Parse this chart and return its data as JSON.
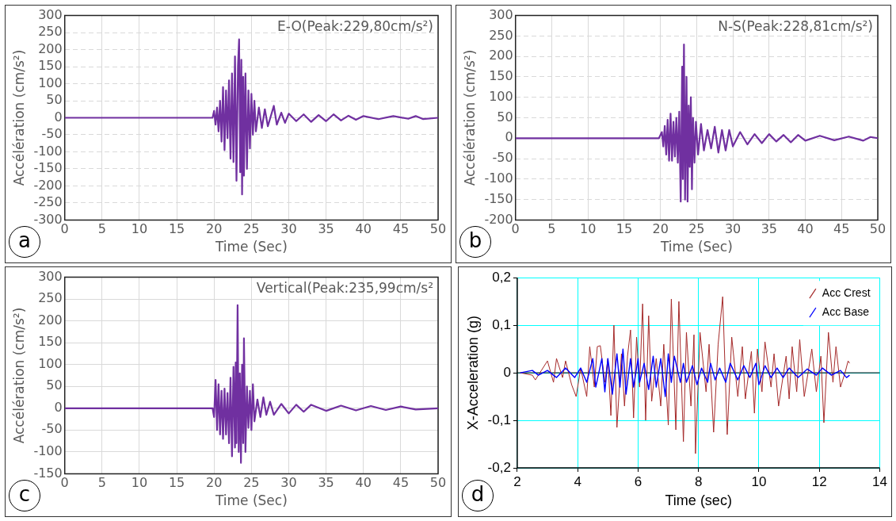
{
  "chart_data": [
    {
      "type": "line",
      "xlabel": "Time (Sec)",
      "ylabel": "Accélération (cm/s²)",
      "annotations": [
        "E-O(Peak:229,80cm/s²)",
        "a"
      ],
      "xlim": [
        0,
        50
      ],
      "ylim": [
        -300,
        300
      ],
      "xticks": [
        0,
        5,
        10,
        15,
        20,
        25,
        30,
        35,
        40,
        45,
        50
      ],
      "yticks": [
        -300,
        -250,
        -200,
        -150,
        -100,
        -50,
        0,
        50,
        100,
        150,
        200,
        250,
        300
      ],
      "grid": true,
      "marker": "none",
      "line_style": "solid",
      "series": [
        {
          "color": "#7030a0",
          "x": [
            0,
            19.8,
            20.0,
            20.2,
            20.4,
            20.6,
            20.8,
            21.0,
            21.2,
            21.4,
            21.6,
            21.8,
            22.0,
            22.2,
            22.4,
            22.6,
            22.8,
            23.0,
            23.2,
            23.35,
            23.5,
            23.65,
            23.75,
            23.9,
            24.0,
            24.2,
            24.4,
            24.6,
            24.8,
            25.0,
            25.2,
            25.4,
            25.6,
            26.0,
            26.4,
            26.8,
            27.2,
            28.0,
            28.4,
            29,
            29.5,
            30,
            31,
            32,
            33,
            34,
            35,
            36,
            37,
            38,
            39,
            40,
            42,
            44,
            46,
            47,
            48,
            50
          ],
          "values": [
            0,
            0,
            20,
            -20,
            30,
            -40,
            50,
            -70,
            90,
            -95,
            80,
            -60,
            110,
            -120,
            130,
            -130,
            180,
            -185,
            150,
            230,
            -160,
            170,
            -225,
            120,
            -170,
            130,
            -150,
            80,
            -90,
            70,
            -50,
            50,
            -40,
            30,
            -30,
            25,
            -25,
            35,
            -20,
            15,
            -15,
            12,
            -10,
            10,
            -12,
            8,
            -10,
            10,
            -8,
            6,
            -6,
            5,
            -4,
            5,
            -3,
            5,
            -4,
            0
          ]
        }
      ]
    },
    {
      "type": "line",
      "xlabel": "Time (Sec)",
      "ylabel": "Accélération (cm/s²)",
      "annotations": [
        "N-S(Peak:228,81cm/s²)",
        "b"
      ],
      "xlim": [
        0,
        50
      ],
      "ylim": [
        -200,
        300
      ],
      "xticks": [
        0,
        5,
        10,
        15,
        20,
        25,
        30,
        35,
        40,
        45,
        50
      ],
      "yticks": [
        -200,
        -150,
        -100,
        -50,
        0,
        50,
        100,
        150,
        200,
        250,
        300
      ],
      "grid": true,
      "marker": "none",
      "line_style": "solid",
      "series": [
        {
          "color": "#7030a0",
          "x": [
            0,
            19.8,
            20.2,
            20.4,
            20.6,
            20.8,
            21.0,
            21.2,
            21.4,
            21.6,
            21.8,
            22.0,
            22.2,
            22.4,
            22.6,
            22.8,
            23.0,
            23.1,
            23.25,
            23.4,
            23.6,
            23.75,
            23.9,
            24.05,
            24.2,
            24.35,
            24.5,
            24.7,
            24.9,
            25.2,
            25.6,
            26,
            26.5,
            27,
            27.5,
            28,
            28.5,
            29,
            29.5,
            30,
            31,
            32,
            33,
            34,
            35,
            36,
            37,
            38,
            39,
            40,
            42,
            44,
            46,
            48,
            49,
            50
          ],
          "values": [
            0,
            0,
            15,
            -20,
            30,
            -40,
            45,
            -55,
            60,
            -55,
            40,
            -45,
            50,
            -60,
            65,
            -155,
            175,
            -100,
            229,
            -150,
            150,
            -155,
            80,
            -70,
            100,
            -125,
            50,
            -60,
            40,
            -40,
            35,
            -30,
            20,
            -25,
            28,
            -35,
            20,
            -30,
            20,
            -20,
            15,
            -15,
            10,
            -12,
            10,
            -8,
            8,
            -10,
            8,
            -6,
            6,
            -5,
            4,
            -6,
            3,
            0
          ]
        }
      ]
    },
    {
      "type": "line",
      "xlabel": "Time (Sec)",
      "ylabel": "Accélération (cm/s²)",
      "annotations": [
        "Vertical(Peak:235,99cm/s²",
        "c"
      ],
      "xlim": [
        0,
        50
      ],
      "ylim": [
        -150,
        300
      ],
      "xticks": [
        0,
        5,
        10,
        15,
        20,
        25,
        30,
        35,
        40,
        45,
        50
      ],
      "yticks": [
        -150,
        -100,
        -50,
        0,
        50,
        100,
        150,
        200,
        250,
        300
      ],
      "grid": true,
      "marker": "none",
      "line_style": "solid",
      "series": [
        {
          "color": "#7030a0",
          "x": [
            0,
            19.8,
            20.0,
            20.2,
            20.4,
            20.6,
            20.8,
            21.0,
            21.2,
            21.4,
            21.6,
            21.8,
            22.0,
            22.2,
            22.4,
            22.6,
            22.8,
            22.9,
            23.0,
            23.15,
            23.3,
            23.45,
            23.6,
            23.75,
            23.9,
            24.0,
            24.2,
            24.4,
            24.6,
            24.8,
            25.0,
            25.2,
            25.4,
            25.8,
            26.2,
            26.6,
            27,
            27.5,
            28,
            29,
            30,
            31,
            32,
            33,
            35,
            37,
            39,
            41,
            43,
            45,
            47,
            50
          ],
          "values": [
            0,
            0,
            -20,
            65,
            -50,
            55,
            -60,
            40,
            -70,
            45,
            -60,
            35,
            -80,
            70,
            -110,
            95,
            -90,
            105,
            -80,
            236,
            -100,
            80,
            -125,
            100,
            -80,
            160,
            -100,
            50,
            -45,
            40,
            -50,
            55,
            -30,
            20,
            -20,
            25,
            -15,
            15,
            -15,
            10,
            -12,
            8,
            -8,
            8,
            -6,
            6,
            -5,
            5,
            -4,
            4,
            -3,
            0
          ]
        }
      ]
    },
    {
      "type": "line",
      "xlabel": "Time (sec)",
      "ylabel": "X-Acceleration (g)",
      "annotations": [
        "d"
      ],
      "xlim": [
        2,
        14
      ],
      "ylim": [
        -0.2,
        0.2
      ],
      "xticks": [
        2,
        4,
        6,
        8,
        10,
        12,
        14
      ],
      "yticks": [
        {
          "value": -0.2,
          "label": "-0,2"
        },
        {
          "value": -0.1,
          "label": "-0,1"
        },
        0,
        {
          "value": 0.1,
          "label": "0,1"
        },
        {
          "value": 0.2,
          "label": "0,2"
        }
      ],
      "grid": true,
      "marker": "none",
      "line_style": "solid",
      "legend": "top right",
      "series": [
        {
          "name": "Acc Crest",
          "color": "#a52a2a",
          "x": [
            2.1,
            2.5,
            2.6,
            2.8,
            3.0,
            3.2,
            3.3,
            3.5,
            3.6,
            3.8,
            3.95,
            4.1,
            4.3,
            4.4,
            4.55,
            4.65,
            4.75,
            4.9,
            5.0,
            5.1,
            5.2,
            5.3,
            5.45,
            5.55,
            5.65,
            5.75,
            5.85,
            5.95,
            6.05,
            6.15,
            6.25,
            6.35,
            6.45,
            6.6,
            6.75,
            6.85,
            7.0,
            7.1,
            7.25,
            7.35,
            7.5,
            7.6,
            7.75,
            7.85,
            7.9,
            8.05,
            8.25,
            8.35,
            8.5,
            8.65,
            8.8,
            8.95,
            9.1,
            9.3,
            9.45,
            9.55,
            9.75,
            9.85,
            9.95,
            10.1,
            10.2,
            10.4,
            10.5,
            10.65,
            10.9,
            11.0,
            11.1,
            11.25,
            11.35,
            11.5,
            11.75,
            11.9,
            12.05,
            12.15,
            12.3,
            12.45,
            12.55,
            12.7,
            12.85,
            12.95,
            13.0
          ],
          "values": [
            0,
            -0.005,
            -0.015,
            0.005,
            0.025,
            -0.02,
            0.03,
            -0.01,
            0.025,
            -0.025,
            -0.05,
            0.01,
            -0.05,
            0.055,
            -0.03,
            0.055,
            0.057,
            -0.02,
            0.03,
            -0.09,
            0.1,
            -0.115,
            0.04,
            -0.07,
            0.035,
            0.09,
            -0.095,
            0.075,
            -0.03,
            0.145,
            -0.1,
            0.12,
            -0.06,
            0.03,
            -0.07,
            0.06,
            -0.11,
            0.155,
            -0.12,
            0.15,
            -0.145,
            0.085,
            -0.07,
            0.08,
            -0.17,
            0.085,
            -0.04,
            0.06,
            -0.125,
            0.06,
            0.16,
            -0.13,
            0.075,
            -0.05,
            0.055,
            -0.055,
            0.045,
            -0.085,
            0.05,
            -0.04,
            0.065,
            -0.03,
            0.04,
            -0.07,
            0.035,
            -0.055,
            0.055,
            -0.04,
            0.07,
            -0.05,
            0.05,
            -0.04,
            0.035,
            -0.105,
            0.085,
            -0.02,
            0.055,
            -0.03,
            0,
            0.025,
            0.02
          ]
        },
        {
          "name": "Acc Base",
          "color": "#0000ff",
          "x": [
            2.1,
            2.5,
            2.7,
            3.0,
            3.3,
            3.6,
            3.9,
            4.1,
            4.3,
            4.5,
            4.6,
            4.8,
            4.9,
            5.0,
            5.15,
            5.3,
            5.4,
            5.5,
            5.6,
            5.75,
            5.85,
            6.0,
            6.05,
            6.2,
            6.35,
            6.5,
            6.6,
            6.75,
            6.9,
            7.0,
            7.1,
            7.2,
            7.4,
            7.5,
            7.6,
            7.8,
            7.95,
            8.1,
            8.3,
            8.4,
            8.55,
            8.7,
            8.9,
            9.05,
            9.3,
            9.5,
            9.7,
            9.9,
            10.0,
            10.2,
            10.4,
            10.6,
            10.8,
            11.0,
            11.3,
            11.6,
            11.9,
            12.1,
            12.4,
            12.7,
            12.9,
            13.0
          ],
          "values": [
            0,
            0.005,
            -0.005,
            0.005,
            -0.01,
            0.01,
            -0.01,
            0.01,
            -0.02,
            0.03,
            -0.03,
            0.03,
            -0.04,
            0.03,
            -0.045,
            0.04,
            -0.03,
            0.05,
            -0.045,
            0.03,
            -0.03,
            0.03,
            -0.02,
            0.02,
            -0.035,
            0.035,
            -0.03,
            0.03,
            -0.05,
            0.04,
            -0.02,
            0.035,
            -0.02,
            0.02,
            -0.02,
            0.015,
            -0.025,
            0.01,
            -0.02,
            0.02,
            -0.015,
            0.01,
            -0.02,
            0.02,
            -0.015,
            0.015,
            -0.01,
            0.02,
            -0.025,
            0.015,
            -0.01,
            0.01,
            -0.01,
            0.01,
            -0.01,
            0.008,
            -0.005,
            0.01,
            -0.005,
            0.005,
            -0.01,
            -0.005
          ]
        }
      ]
    }
  ]
}
